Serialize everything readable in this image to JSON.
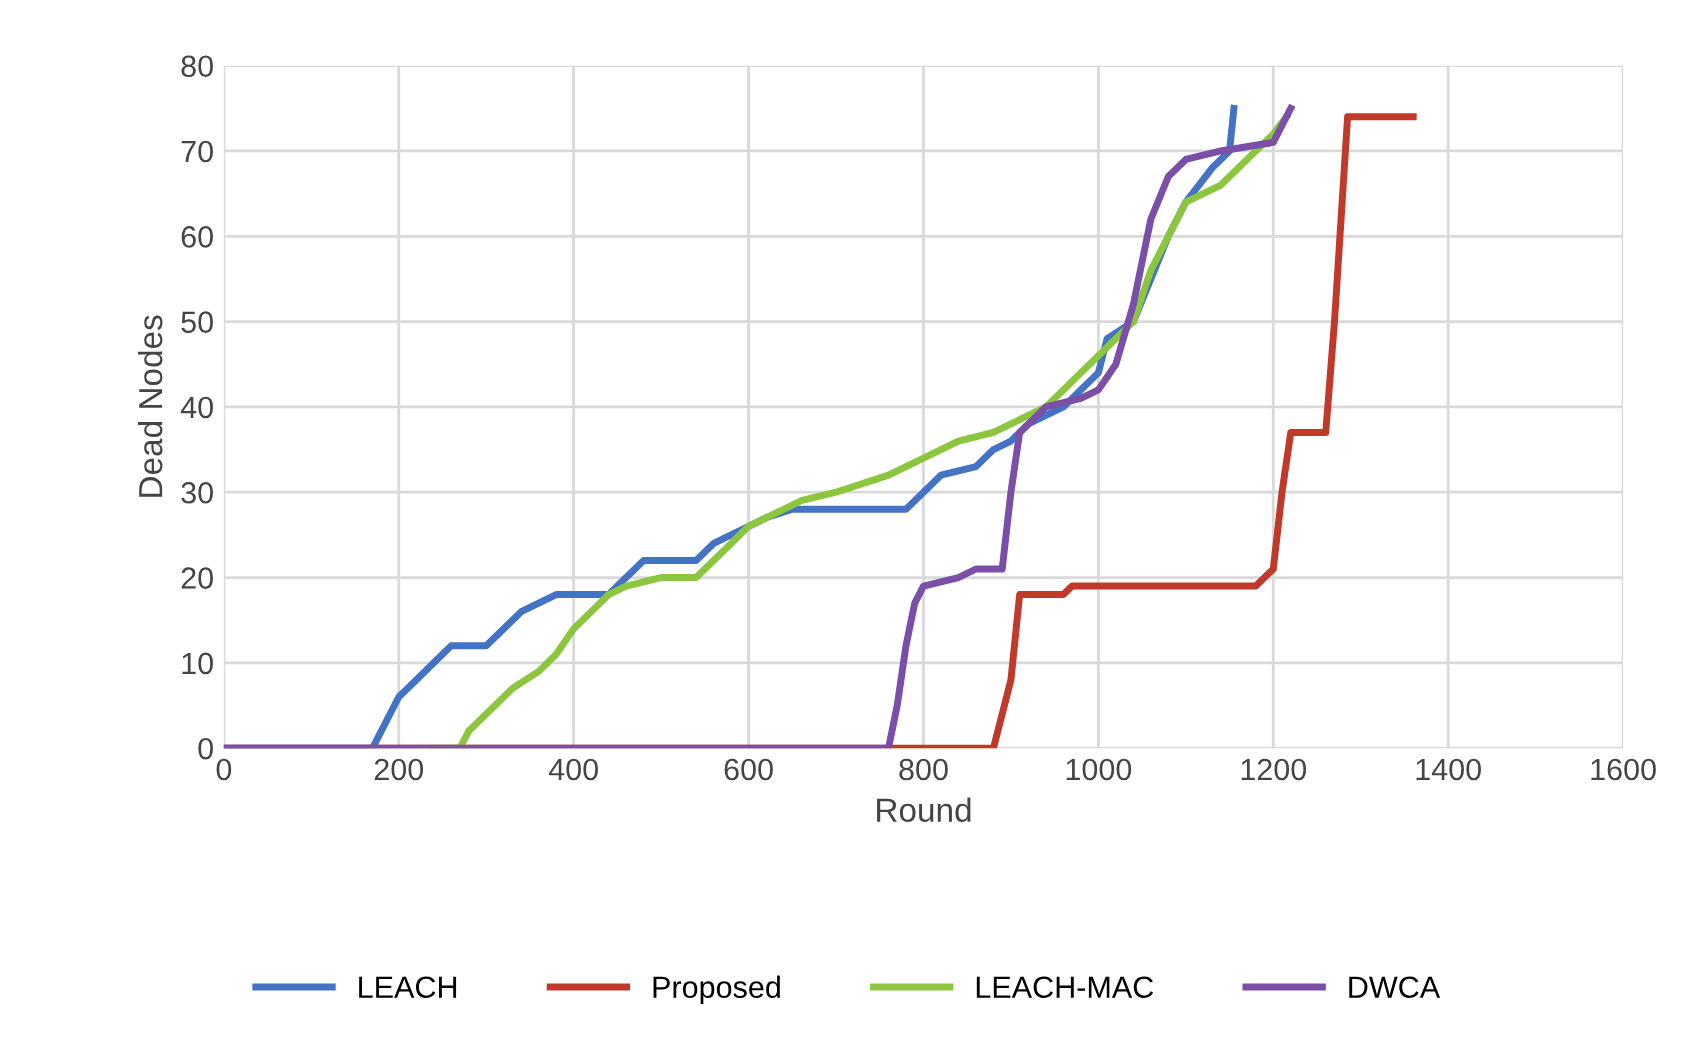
{
  "chart_data": {
    "type": "line",
    "xlabel": "Round",
    "ylabel": "Dead Nodes",
    "xlim": [
      0,
      1600
    ],
    "xticks": [
      0,
      200,
      400,
      600,
      800,
      1000,
      1200,
      1400,
      1600
    ],
    "ylim": [
      0,
      80
    ],
    "yticks": [
      0,
      10,
      20,
      30,
      40,
      50,
      60,
      70,
      80
    ],
    "grid": true,
    "legend": "bottom",
    "marker": "none",
    "line_style": "solid",
    "series": [
      {
        "name": "LEACH",
        "color": "#4472c4",
        "x": [
          0,
          170,
          180,
          190,
          200,
          220,
          240,
          260,
          300,
          320,
          340,
          360,
          380,
          440,
          460,
          480,
          540,
          560,
          600,
          620,
          650,
          780,
          800,
          820,
          860,
          880,
          900,
          920,
          960,
          1000,
          1010,
          1040,
          1060,
          1080,
          1100,
          1130,
          1150,
          1155
        ],
        "values": [
          0,
          0,
          2,
          4,
          6,
          8,
          10,
          12,
          12,
          14,
          16,
          17,
          18,
          18,
          20,
          22,
          22,
          24,
          26,
          27,
          28,
          28,
          30,
          32,
          33,
          35,
          36,
          38,
          40,
          44,
          48,
          50,
          55,
          60,
          64,
          68,
          70,
          75
        ]
      },
      {
        "name": "Proposed",
        "color": "#c0392b",
        "x": [
          0,
          880,
          890,
          900,
          910,
          960,
          970,
          1180,
          1200,
          1210,
          1220,
          1260,
          1270,
          1285,
          1360
        ],
        "values": [
          0,
          0,
          4,
          8,
          18,
          18,
          19,
          19,
          21,
          30,
          37,
          37,
          50,
          74,
          74
        ]
      },
      {
        "name": "LEACH-MAC",
        "color": "#8cc63f",
        "x": [
          240,
          270,
          280,
          300,
          330,
          360,
          380,
          400,
          420,
          440,
          460,
          500,
          540,
          560,
          580,
          600,
          640,
          660,
          700,
          760,
          800,
          840,
          880,
          900,
          940,
          980,
          1000,
          1040,
          1060,
          1080,
          1100,
          1140,
          1160,
          1180,
          1200,
          1215
        ],
        "values": [
          0,
          0,
          2,
          4,
          7,
          9,
          11,
          14,
          16,
          18,
          19,
          20,
          20,
          22,
          24,
          26,
          28,
          29,
          30,
          32,
          34,
          36,
          37,
          38,
          40,
          44,
          46,
          50,
          56,
          60,
          64,
          66,
          68,
          70,
          72,
          74
        ]
      },
      {
        "name": "DWCA",
        "color": "#7b4fa8",
        "x": [
          0,
          760,
          770,
          780,
          790,
          800,
          840,
          860,
          890,
          900,
          910,
          940,
          980,
          1000,
          1020,
          1040,
          1060,
          1080,
          1100,
          1140,
          1200,
          1220
        ],
        "values": [
          0,
          0,
          5,
          12,
          17,
          19,
          20,
          21,
          21,
          30,
          37,
          40,
          41,
          42,
          45,
          52,
          62,
          67,
          69,
          70,
          71,
          75
        ]
      }
    ]
  }
}
